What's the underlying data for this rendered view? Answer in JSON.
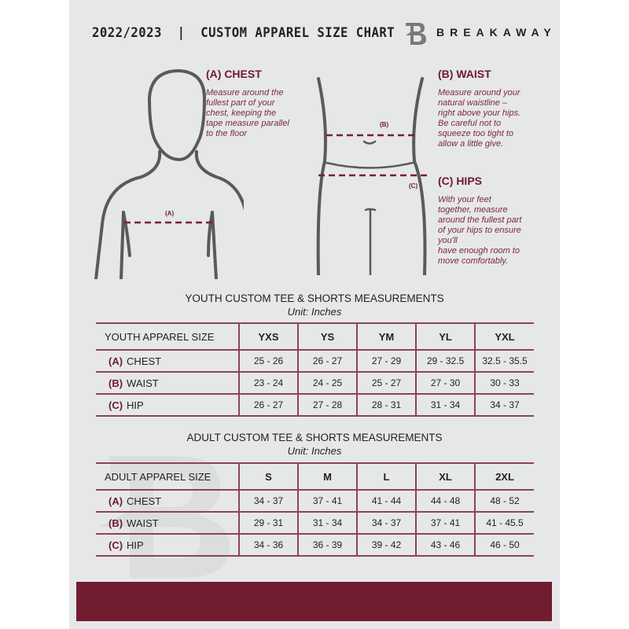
{
  "header": {
    "title": "2022/2023  |  CUSTOM APPAREL SIZE CHART",
    "brand": "BREAKAWAY",
    "logo_letter": "B"
  },
  "colors": {
    "accent": "#721c30",
    "panel": "#e6e7e8"
  },
  "guide": {
    "chest": {
      "heading": "(A) CHEST",
      "text": "Measure around the\nfullest part of your\nchest, keeping the\ntape measure parallel\nto the floor",
      "marker": "(A)"
    },
    "waist": {
      "heading": "(B) WAIST",
      "text": "Measure around your\nnatural waistline –\nright above your hips.\nBe careful not to\nsqueeze too tight to\nallow a little give.",
      "marker": "(B)"
    },
    "hips": {
      "heading": "(C) HIPS",
      "text": "With your feet\ntogether, measure\naround the fullest part\nof your hips to ensure\nyou'll\nhave enough room to\nmove comfortably.",
      "marker": "(C)"
    }
  },
  "youth": {
    "title": "YOUTH CUSTOM TEE & SHORTS MEASUREMENTS",
    "unit": "Unit: Inches",
    "header_label": "YOUTH APPAREL SIZE",
    "sizes": [
      "YXS",
      "YS",
      "YM",
      "YL",
      "YXL"
    ],
    "rows": [
      {
        "code": "(A)",
        "name": "CHEST",
        "values": [
          "25 - 26",
          "26 - 27",
          "27 - 29",
          "29 - 32.5",
          "32.5 - 35.5"
        ]
      },
      {
        "code": "(B)",
        "name": "WAIST",
        "values": [
          "23 - 24",
          "24 - 25",
          "25 - 27",
          "27 - 30",
          "30 - 33"
        ]
      },
      {
        "code": "(C)",
        "name": "HIP",
        "values": [
          "26 - 27",
          "27 - 28",
          "28 - 31",
          "31 - 34",
          "34 - 37"
        ]
      }
    ]
  },
  "adult": {
    "title": "ADULT CUSTOM TEE & SHORTS MEASUREMENTS",
    "unit": "Unit: Inches",
    "header_label": "ADULT APPAREL SIZE",
    "sizes": [
      "S",
      "M",
      "L",
      "XL",
      "2XL"
    ],
    "rows": [
      {
        "code": "(A)",
        "name": "CHEST",
        "values": [
          "34 - 37",
          "37 - 41",
          "41 - 44",
          "44 - 48",
          "48 - 52"
        ]
      },
      {
        "code": "(B)",
        "name": "WAIST",
        "values": [
          "29 - 31",
          "31 - 34",
          "34 - 37",
          "37 - 41",
          "41 - 45.5"
        ]
      },
      {
        "code": "(C)",
        "name": "HIP",
        "values": [
          "34 - 36",
          "36 - 39",
          "39 - 42",
          "43 - 46",
          "46 - 50"
        ]
      }
    ]
  }
}
